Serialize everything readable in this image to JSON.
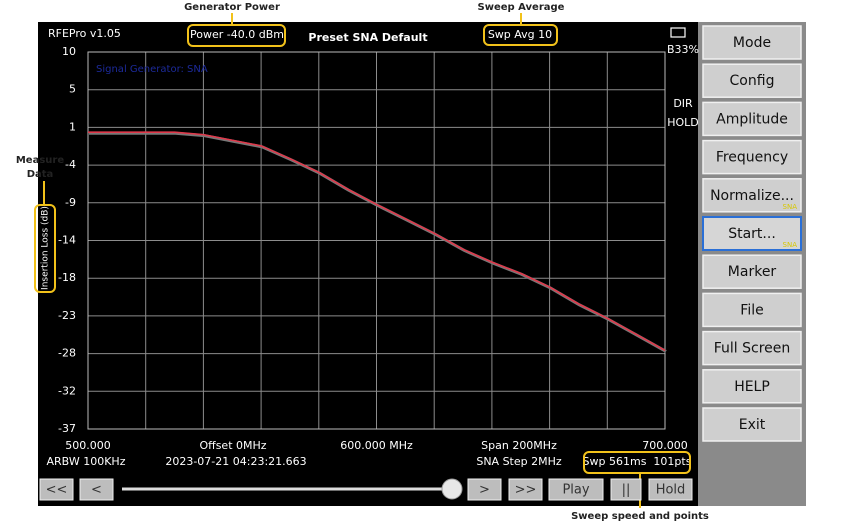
{
  "annotations": {
    "generator_power": "Generator Power",
    "sweep_average": "Sweep Average",
    "measure_data": [
      "Measure",
      "Data"
    ],
    "sweep_speed": "Sweep speed and points"
  },
  "header": {
    "app": "RFEPro v1.05",
    "power": "Power -40.0 dBm",
    "preset": "Preset SNA Default",
    "average": "Swp Avg 10",
    "battery": "B33%",
    "flags": [
      "DIR",
      "HOLD"
    ]
  },
  "chart_data": {
    "type": "line",
    "ylabel": "Insertion Loss (dB)",
    "overlay_text": "Signal Generator: SNA",
    "x": [
      500,
      510,
      520,
      530,
      540,
      550,
      560,
      570,
      580,
      590,
      600,
      610,
      620,
      630,
      640,
      650,
      660,
      670,
      680,
      690,
      700
    ],
    "values": [
      0,
      0,
      0,
      0,
      -0.3,
      -1.0,
      -1.7,
      -3.3,
      -5.0,
      -7.1,
      -9.0,
      -10.8,
      -12.6,
      -14.6,
      -16.2,
      -17.6,
      -19.3,
      -21.4,
      -23.2,
      -25.2,
      -27.2
    ],
    "color": "#e0394b",
    "xlim": [
      500,
      700
    ],
    "xticks": [
      {
        "value": 500,
        "label": "500.000"
      },
      {
        "value": 600,
        "label": "600.000 MHz"
      },
      {
        "value": 700,
        "label": "700.000"
      }
    ],
    "xgrid": [
      500,
      520,
      540,
      560,
      580,
      600,
      620,
      640,
      660,
      680,
      700
    ],
    "ylim": [
      -37,
      10
    ],
    "yticks": [
      10,
      {
        "value": 5.3,
        "label": "5"
      },
      {
        "value": 0.6,
        "label": "1"
      },
      {
        "value": -4.1,
        "label": "-4"
      },
      {
        "value": -8.8,
        "label": "-9"
      },
      {
        "value": -13.5,
        "label": "-14"
      },
      {
        "value": -18.2,
        "label": "-18"
      },
      {
        "value": -22.9,
        "label": "-23"
      },
      {
        "value": -27.6,
        "label": "-28"
      },
      {
        "value": -32.3,
        "label": "-32"
      },
      -37
    ],
    "grid": true
  },
  "footer": {
    "offset": "Offset 0MHz",
    "span": "Span 200MHz",
    "rbw": "ARBW 100KHz",
    "timestamp": "2023-07-21 04:23:21.663",
    "step": "SNA Step 2MHz",
    "sweep": "Swp 561ms  101pts"
  },
  "menu": [
    {
      "label": "Mode"
    },
    {
      "label": "Config"
    },
    {
      "label": "Amplitude"
    },
    {
      "label": "Frequency"
    },
    {
      "label": "Normalize...",
      "tag": "SNA"
    },
    {
      "label": "Start...",
      "tag": "SNA"
    },
    {
      "label": "Marker"
    },
    {
      "label": "File"
    },
    {
      "label": "Full Screen"
    },
    {
      "label": "HELP"
    },
    {
      "label": "Exit"
    }
  ],
  "controls": [
    "<<",
    "<",
    ">",
    ">>",
    "Play",
    "||",
    "Hold"
  ]
}
